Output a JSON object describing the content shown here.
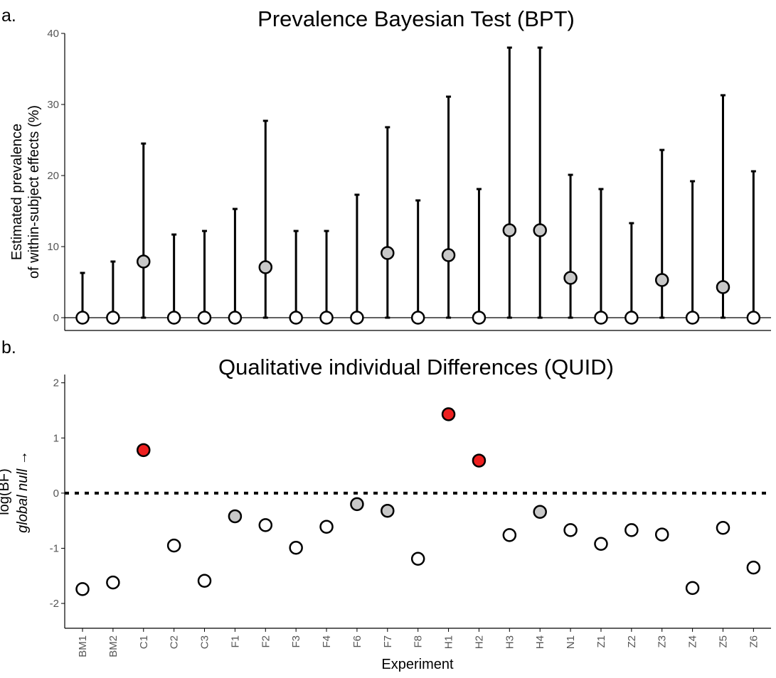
{
  "chart_data": [
    {
      "type": "scatter",
      "panel_label": "a.",
      "title": "Prevalence Bayesian Test (BPT)",
      "ylabel_lines": [
        "Estimated prevalence",
        "of within-subject effects (%)"
      ],
      "xlabel": "",
      "ylim": [
        0,
        40
      ],
      "yticks": [
        0,
        10,
        20,
        30,
        40
      ],
      "ytick_labels": [
        "0",
        "10",
        "20",
        "30",
        "40"
      ],
      "grid": false,
      "reference_line": 0,
      "categories": [
        "BM1",
        "BM2",
        "C1",
        "C2",
        "C3",
        "F1",
        "F2",
        "F3",
        "F4",
        "F6",
        "F7",
        "F8",
        "H1",
        "H2",
        "H3",
        "H4",
        "N1",
        "Z1",
        "Z2",
        "Z3",
        "Z4",
        "Z5",
        "Z6"
      ],
      "series": [
        {
          "values": [
            0,
            0,
            7.9,
            0,
            0,
            0,
            7.1,
            0,
            0,
            0,
            9.1,
            0,
            8.8,
            0,
            12.3,
            12.3,
            5.6,
            0,
            0,
            5.3,
            0,
            4.3,
            0
          ],
          "upper": [
            6.3,
            7.9,
            24.5,
            11.7,
            12.2,
            15.3,
            27.7,
            12.2,
            12.2,
            17.3,
            26.8,
            16.5,
            31.1,
            18.1,
            38.0,
            38.0,
            20.1,
            18.1,
            13.3,
            23.6,
            19.2,
            31.3,
            20.6
          ],
          "lower": [
            0,
            0,
            0,
            0,
            0,
            0,
            0,
            0,
            0,
            0,
            0,
            0,
            0,
            0,
            0,
            0,
            0,
            0,
            0,
            0,
            0,
            0,
            0
          ],
          "point_fill": [
            "#ffffff",
            "#ffffff",
            "#c8c8c8",
            "#ffffff",
            "#ffffff",
            "#ffffff",
            "#c8c8c8",
            "#ffffff",
            "#ffffff",
            "#ffffff",
            "#c8c8c8",
            "#ffffff",
            "#c8c8c8",
            "#ffffff",
            "#c8c8c8",
            "#c8c8c8",
            "#c8c8c8",
            "#ffffff",
            "#ffffff",
            "#c8c8c8",
            "#ffffff",
            "#c8c8c8",
            "#ffffff"
          ]
        }
      ]
    },
    {
      "type": "scatter",
      "panel_label": "b.",
      "title": "Qualitative individual Differences (QUID)",
      "ylabel_lines": [
        "log(BF)",
        "global null →"
      ],
      "xlabel": "Experiment",
      "ylim": [
        -2.45,
        2.15
      ],
      "yticks": [
        -2,
        -1,
        0,
        1,
        2
      ],
      "ytick_labels": [
        "-2",
        "-1",
        "0",
        "1",
        "2"
      ],
      "grid": false,
      "reference_line": 0,
      "categories": [
        "BM1",
        "BM2",
        "C1",
        "C2",
        "C3",
        "F1",
        "F2",
        "F3",
        "F4",
        "F6",
        "F7",
        "F8",
        "H1",
        "H2",
        "H3",
        "H4",
        "N1",
        "Z1",
        "Z2",
        "Z3",
        "Z4",
        "Z5",
        "Z6"
      ],
      "series": [
        {
          "values": [
            -1.74,
            -1.62,
            0.78,
            -0.95,
            -1.59,
            -0.42,
            -0.58,
            -0.99,
            -0.61,
            -0.2,
            -0.32,
            -1.19,
            1.43,
            0.59,
            -0.76,
            -0.34,
            -0.67,
            -0.92,
            -0.67,
            -0.75,
            -1.72,
            -0.63,
            -1.35
          ],
          "point_fill": [
            "#ffffff",
            "#ffffff",
            "#ee2020",
            "#ffffff",
            "#ffffff",
            "#c8c8c8",
            "#ffffff",
            "#ffffff",
            "#ffffff",
            "#c8c8c8",
            "#c8c8c8",
            "#ffffff",
            "#ee2020",
            "#ee2020",
            "#ffffff",
            "#c8c8c8",
            "#ffffff",
            "#ffffff",
            "#ffffff",
            "#ffffff",
            "#ffffff",
            "#ffffff",
            "#ffffff"
          ]
        }
      ]
    }
  ],
  "colors": {
    "axis": "#000000",
    "tick_label": "#555555",
    "significant": "#ee2020",
    "intermediate": "#c8c8c8",
    "null": "#ffffff"
  }
}
